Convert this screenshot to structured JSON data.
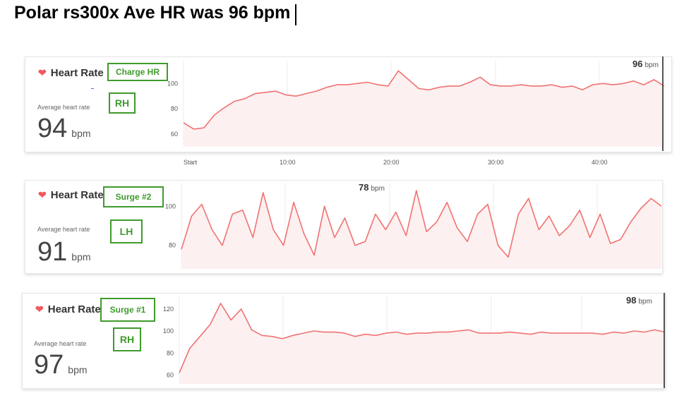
{
  "page_title": "Polar rs300x Ave HR was 96 bpm",
  "colors": {
    "line": "#f07272",
    "fill": "#fdf0f0",
    "tag": "#3f9a2c",
    "heart": "#f0595f"
  },
  "x_ticks": [
    "Start",
    "10:00",
    "20:00",
    "30:00",
    "40:00"
  ],
  "panels": [
    {
      "title": "Heart Rate",
      "heart_icon": "heart-icon",
      "device": "Charge HR",
      "hand": "RH",
      "avg_label": "Average heart rate",
      "avg_value": "94",
      "avg_unit": "bpm",
      "current_value": "96",
      "current_unit": "bpm"
    },
    {
      "title": "Heart Rate",
      "heart_icon": "heart-icon",
      "device": "Surge #2",
      "hand": "LH",
      "avg_label": "Average heart rate",
      "avg_value": "91",
      "avg_unit": "bpm",
      "current_value": "78",
      "current_unit": "bpm"
    },
    {
      "title": "Heart Rate",
      "heart_icon": "heart-icon",
      "device": "Surge #1",
      "hand": "RH",
      "avg_label": "Average heart rate",
      "avg_value": "97",
      "avg_unit": "bpm",
      "current_value": "98",
      "current_unit": "bpm"
    }
  ],
  "chart_data": [
    {
      "type": "area",
      "title": "Heart Rate",
      "ylabel": "",
      "xlabel": "",
      "ylim": [
        50,
        118
      ],
      "yticks": [
        60,
        80,
        100
      ],
      "xlim": [
        0,
        47
      ],
      "x_tick_labels": [
        "Start",
        "10:00",
        "20:00",
        "30:00",
        "40:00"
      ],
      "x": [
        0,
        1,
        2,
        3,
        4,
        5,
        6,
        7,
        8,
        9,
        10,
        11,
        12,
        13,
        14,
        15,
        16,
        17,
        18,
        19,
        20,
        21,
        22,
        23,
        24,
        25,
        26,
        27,
        28,
        29,
        30,
        31,
        32,
        33,
        34,
        35,
        36,
        37,
        38,
        39,
        40,
        41,
        42,
        43,
        44,
        45,
        46,
        47
      ],
      "y": [
        69,
        64,
        65,
        75,
        81,
        86,
        88,
        92,
        93,
        94,
        91,
        90,
        92,
        94,
        97,
        99,
        99,
        100,
        101,
        99,
        98,
        110,
        103,
        96,
        95,
        97,
        98,
        98,
        101,
        105,
        99,
        98,
        98,
        99,
        98,
        98,
        99,
        97,
        98,
        95,
        99,
        100,
        99,
        100,
        102,
        99,
        103,
        98
      ]
    },
    {
      "type": "line",
      "title": "Heart Rate",
      "ylabel": "",
      "xlabel": "",
      "ylim": [
        68,
        112
      ],
      "yticks": [
        80,
        100
      ],
      "xlim": [
        0,
        47
      ],
      "x": [
        0,
        1,
        2,
        3,
        4,
        5,
        6,
        7,
        8,
        9,
        10,
        11,
        12,
        13,
        14,
        15,
        16,
        17,
        18,
        19,
        20,
        21,
        22,
        23,
        24,
        25,
        26,
        27,
        28,
        29,
        30,
        31,
        32,
        33,
        34,
        35,
        36,
        37,
        38,
        39,
        40,
        41,
        42,
        43,
        44,
        45,
        46,
        47
      ],
      "y": [
        78,
        95,
        101,
        88,
        80,
        96,
        98,
        84,
        107,
        88,
        80,
        102,
        86,
        75,
        100,
        84,
        94,
        80,
        82,
        96,
        88,
        97,
        85,
        108,
        87,
        92,
        102,
        89,
        82,
        96,
        101,
        80,
        74,
        96,
        104,
        88,
        95,
        85,
        90,
        98,
        84,
        96,
        81,
        83,
        92,
        99,
        104,
        100
      ]
    },
    {
      "type": "area",
      "title": "Heart Rate",
      "ylabel": "",
      "xlabel": "",
      "ylim": [
        52,
        132
      ],
      "yticks": [
        60,
        80,
        100,
        120
      ],
      "xlim": [
        0,
        47
      ],
      "x": [
        0,
        1,
        2,
        3,
        4,
        5,
        6,
        7,
        8,
        9,
        10,
        11,
        12,
        13,
        14,
        15,
        16,
        17,
        18,
        19,
        20,
        21,
        22,
        23,
        24,
        25,
        26,
        27,
        28,
        29,
        30,
        31,
        32,
        33,
        34,
        35,
        36,
        37,
        38,
        39,
        40,
        41,
        42,
        43,
        44,
        45,
        46,
        47
      ],
      "y": [
        62,
        84,
        95,
        106,
        125,
        110,
        120,
        101,
        96,
        95,
        93,
        96,
        98,
        100,
        99,
        99,
        98,
        95,
        97,
        96,
        98,
        99,
        97,
        98,
        98,
        99,
        99,
        100,
        101,
        98,
        98,
        98,
        99,
        98,
        97,
        99,
        98,
        98,
        98,
        98,
        98,
        97,
        99,
        98,
        100,
        99,
        101,
        99
      ]
    }
  ]
}
